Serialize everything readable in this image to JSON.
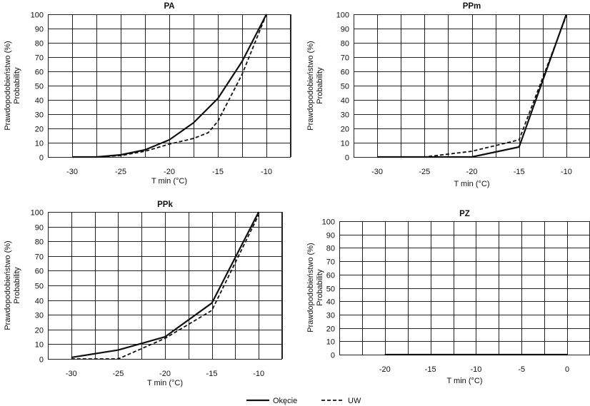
{
  "legend": {
    "items": [
      {
        "name": "Okęcie",
        "style": "solid"
      },
      {
        "name": "UW",
        "style": "dashed"
      }
    ],
    "position": "bottom-center"
  },
  "colors": {
    "line": "#111111",
    "grid": "#222222",
    "background": "#ffffff"
  },
  "chart_data": [
    {
      "type": "line",
      "title": "PA",
      "xlabel": "T min (°C)",
      "ylabel": "Prawdopodobieństwo (%)",
      "ylabel2": "Probability",
      "xlim": [
        -32.5,
        -7.5
      ],
      "ylim": [
        0,
        100
      ],
      "xticks": [
        -30,
        -25,
        -20,
        -15,
        -10
      ],
      "yticks": [
        0,
        10,
        20,
        30,
        40,
        50,
        60,
        70,
        80,
        90,
        100
      ],
      "grid": true,
      "series": [
        {
          "name": "Okęcie",
          "x": [
            -30,
            -27.5,
            -25,
            -22.5,
            -20,
            -17.5,
            -15,
            -12.5,
            -10
          ],
          "y": [
            0,
            0,
            1.5,
            5,
            12,
            24,
            41,
            67,
            100
          ]
        },
        {
          "name": "UW",
          "x": [
            -30,
            -27.5,
            -25,
            -22.5,
            -20,
            -17.5,
            -16,
            -15,
            -12.5,
            -10
          ],
          "y": [
            0,
            0,
            1,
            4,
            9,
            13,
            17,
            25,
            58,
            100
          ]
        }
      ]
    },
    {
      "type": "line",
      "title": "PPm",
      "xlabel": "T min (°C)",
      "ylabel": "Prawdopodobieństwo (%)",
      "ylabel2": "Probability",
      "xlim": [
        -32.5,
        -7.5
      ],
      "ylim": [
        0,
        100
      ],
      "xticks": [
        -30,
        -25,
        -20,
        -15,
        -10
      ],
      "yticks": [
        0,
        10,
        20,
        30,
        40,
        50,
        60,
        70,
        80,
        90,
        100
      ],
      "grid": true,
      "series": [
        {
          "name": "Okęcie",
          "x": [
            -30,
            -20,
            -15,
            -10
          ],
          "y": [
            0,
            0,
            7,
            100
          ]
        },
        {
          "name": "UW",
          "x": [
            -30,
            -25,
            -20,
            -15,
            -10
          ],
          "y": [
            0,
            0,
            4,
            12,
            99
          ]
        }
      ]
    },
    {
      "type": "line",
      "title": "PPk",
      "xlabel": "T min (°C)",
      "ylabel": "Prawdopodobieństwo (%)",
      "ylabel2": "Probability",
      "xlim": [
        -32.5,
        -7.5
      ],
      "ylim": [
        0,
        100
      ],
      "xticks": [
        -30,
        -25,
        -20,
        -15,
        -10
      ],
      "yticks": [
        0,
        10,
        20,
        30,
        40,
        50,
        60,
        70,
        80,
        90,
        100
      ],
      "grid": true,
      "series": [
        {
          "name": "Okęcie",
          "x": [
            -30,
            -25,
            -20,
            -15,
            -10
          ],
          "y": [
            1,
            6,
            15,
            38,
            100
          ]
        },
        {
          "name": "UW",
          "x": [
            -30,
            -25,
            -20,
            -15,
            -10
          ],
          "y": [
            0,
            0,
            14,
            33,
            98
          ]
        }
      ]
    },
    {
      "type": "line",
      "title": "PZ",
      "xlabel": "T min (°C)",
      "ylabel": "Prawdopodobieństwo (%)",
      "ylabel2": "Probability",
      "xlim": [
        -25,
        2.5
      ],
      "ylim": [
        0,
        100
      ],
      "xticks": [
        -20,
        -15,
        -10,
        -5,
        0
      ],
      "yticks": [
        0,
        10,
        20,
        30,
        40,
        50,
        60,
        70,
        80,
        90,
        100
      ],
      "grid": true,
      "series": [
        {
          "name": "Okęcie",
          "x": [
            -20,
            -15,
            -10,
            -5,
            0
          ],
          "y": [
            0,
            0,
            0,
            0,
            0
          ]
        },
        {
          "name": "UW",
          "x": [
            -20,
            -15,
            -10,
            -5,
            0
          ],
          "y": [
            0,
            0,
            0,
            0,
            0
          ]
        }
      ]
    }
  ]
}
